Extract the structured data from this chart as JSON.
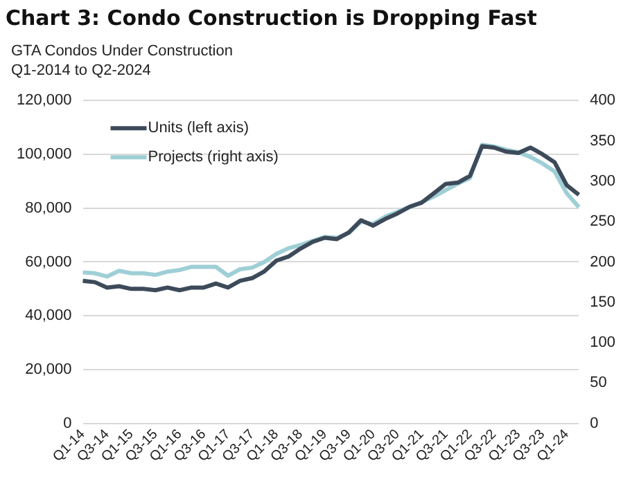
{
  "chart_data": {
    "type": "line",
    "title": "Chart 3: Condo Construction is Dropping Fast",
    "subtitle": "GTA Condos Under Construction\nQ1-2014 to Q2-2024",
    "categories": [
      "Q1-14",
      null,
      "Q3-14",
      null,
      "Q1-15",
      null,
      "Q3-15",
      null,
      "Q1-16",
      null,
      "Q3-16",
      null,
      "Q1-17",
      null,
      "Q3-17",
      null,
      "Q1-18",
      null,
      "Q3-18",
      null,
      "Q1-19",
      null,
      "Q3-19",
      null,
      "Q1-20",
      null,
      "Q3-20",
      null,
      "Q1-21",
      null,
      "Q3-21",
      null,
      "Q1-22",
      null,
      "Q3-22",
      null,
      "Q1-23",
      null,
      "Q3-23",
      null,
      "Q1-24",
      null
    ],
    "series": [
      {
        "name": "Units (left axis)",
        "color": "#3d4a5a",
        "axis": "y",
        "values": [
          53000,
          52500,
          50500,
          51000,
          50000,
          50000,
          49500,
          50500,
          49500,
          50500,
          50500,
          52000,
          50500,
          53000,
          54000,
          56500,
          60500,
          62000,
          65000,
          67500,
          69000,
          68500,
          71000,
          75500,
          73500,
          76000,
          78000,
          80500,
          82000,
          85500,
          89000,
          89500,
          92000,
          103000,
          102500,
          101000,
          100500,
          102500,
          100000,
          97000,
          88500,
          85000
        ]
      },
      {
        "name": "Projects (right axis)",
        "color": "#9fcfd6",
        "axis": "y2",
        "values": [
          187,
          186,
          182,
          189,
          186,
          186,
          184,
          188,
          190,
          194,
          194,
          194,
          183,
          191,
          193,
          200,
          210,
          217,
          221,
          226,
          231,
          230,
          236,
          250,
          247,
          256,
          262,
          268,
          274,
          281,
          289,
          297,
          304,
          345,
          343,
          339,
          336,
          330,
          322,
          312,
          285,
          268
        ]
      }
    ],
    "ylim": [
      0,
      120000
    ],
    "yticks": [
      {
        "value": 0,
        "label": "0"
      },
      {
        "value": 20000,
        "label": "20,000"
      },
      {
        "value": 40000,
        "label": "40,000"
      },
      {
        "value": 60000,
        "label": "60,000"
      },
      {
        "value": 80000,
        "label": "80,000"
      },
      {
        "value": 100000,
        "label": "100,000"
      },
      {
        "value": 120000,
        "label": "120,000"
      }
    ],
    "y2lim": [
      0,
      400
    ],
    "y2ticks": [
      0,
      50,
      100,
      150,
      200,
      250,
      300,
      350,
      400
    ],
    "grid": "y",
    "legend": "top left",
    "marker": "none",
    "line_style": "solid"
  }
}
